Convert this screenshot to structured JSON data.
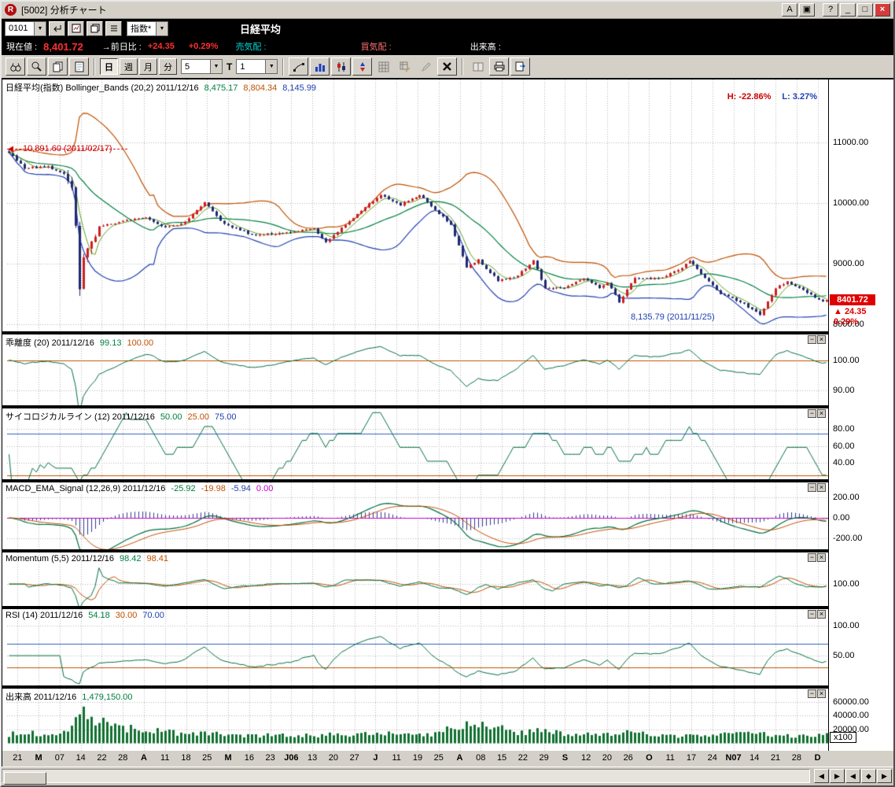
{
  "window": {
    "title": "[5002]  分析チャート",
    "logo_letter": "R",
    "buttons": {
      "font": "A",
      "layout": "▣",
      "help": "?",
      "minimize": "_",
      "maximize": "□",
      "close": "×"
    }
  },
  "symbol_bar": {
    "code": "0101",
    "category": "指数*",
    "name": "日経平均",
    "dropdown_arrow": "▼"
  },
  "quote_bar": {
    "price_label": "現在値 :",
    "price": "8,401.72",
    "change_label": "→前日比 :",
    "change": "+24.35",
    "change_pct": "+0.29%",
    "ask_label": "売気配 :",
    "bid_label": "買気配 :",
    "volume_label": "出来高 :"
  },
  "toolbar": {
    "periods": [
      "日",
      "週",
      "月",
      "分"
    ],
    "active_period": "日",
    "minute_value": "5",
    "tick_label": "T",
    "tick_value": "1"
  },
  "scrollbar": {
    "buttons": [
      "◀",
      "▶",
      "◀",
      "◆",
      "▶"
    ]
  },
  "chart_data": {
    "type": "candlestick-multi-panel",
    "symbol": "日経平均(指数)",
    "date_span": "2011/02/17 - 2011/12/16",
    "n_points": 210,
    "volume_unit": "x100",
    "x_labels": [
      "21",
      "M",
      "07",
      "14",
      "22",
      "28",
      "A",
      "11",
      "18",
      "25",
      "M",
      "16",
      "23",
      "J06",
      "13",
      "20",
      "27",
      "J",
      "11",
      "19",
      "25",
      "A",
      "08",
      "15",
      "22",
      "29",
      "S",
      "12",
      "20",
      "26",
      "O",
      "11",
      "17",
      "24",
      "N07",
      "14",
      "21",
      "28",
      "D"
    ],
    "price_anchors": [
      [
        0,
        10840
      ],
      [
        4,
        10580
      ],
      [
        10,
        10590
      ],
      [
        14,
        10490
      ],
      [
        16,
        10250
      ],
      [
        17,
        9620
      ],
      [
        18,
        8605
      ],
      [
        19,
        9095
      ],
      [
        23,
        9610
      ],
      [
        30,
        9710
      ],
      [
        35,
        9770
      ],
      [
        40,
        9590
      ],
      [
        45,
        9685
      ],
      [
        50,
        10000
      ],
      [
        55,
        9650
      ],
      [
        62,
        9480
      ],
      [
        70,
        9500
      ],
      [
        78,
        9570
      ],
      [
        81,
        9360
      ],
      [
        90,
        9870
      ],
      [
        95,
        10140
      ],
      [
        100,
        9970
      ],
      [
        105,
        10130
      ],
      [
        110,
        9830
      ],
      [
        113,
        9640
      ],
      [
        117,
        8945
      ],
      [
        120,
        9060
      ],
      [
        125,
        8720
      ],
      [
        130,
        8800
      ],
      [
        134,
        9060
      ],
      [
        137,
        8590
      ],
      [
        142,
        8610
      ],
      [
        147,
        8740
      ],
      [
        151,
        8610
      ],
      [
        153,
        8700
      ],
      [
        156,
        8360
      ],
      [
        160,
        8770
      ],
      [
        166,
        8750
      ],
      [
        172,
        8930
      ],
      [
        174,
        9050
      ],
      [
        178,
        8770
      ],
      [
        182,
        8510
      ],
      [
        187,
        8375
      ],
      [
        192,
        8160
      ],
      [
        196,
        8600
      ],
      [
        199,
        8700
      ],
      [
        203,
        8560
      ],
      [
        206,
        8440
      ],
      [
        208,
        8377
      ],
      [
        209,
        8401.72
      ]
    ],
    "volume_anchors": [
      [
        0,
        13000
      ],
      [
        10,
        15000
      ],
      [
        16,
        20000
      ],
      [
        17,
        40000
      ],
      [
        18,
        57000
      ],
      [
        19,
        50000
      ],
      [
        20,
        42000
      ],
      [
        22,
        35000
      ],
      [
        25,
        28000
      ],
      [
        30,
        22000
      ],
      [
        40,
        16000
      ],
      [
        50,
        14000
      ],
      [
        60,
        12000
      ],
      [
        70,
        11000
      ],
      [
        80,
        12000
      ],
      [
        90,
        14000
      ],
      [
        100,
        13000
      ],
      [
        110,
        14000
      ],
      [
        113,
        24000
      ],
      [
        117,
        30000
      ],
      [
        120,
        26000
      ],
      [
        125,
        22000
      ],
      [
        130,
        16000
      ],
      [
        137,
        18000
      ],
      [
        145,
        13000
      ],
      [
        156,
        16000
      ],
      [
        165,
        12000
      ],
      [
        175,
        11000
      ],
      [
        182,
        12000
      ],
      [
        187,
        13000
      ],
      [
        192,
        14000
      ],
      [
        196,
        12000
      ],
      [
        203,
        10000
      ],
      [
        206,
        11000
      ],
      [
        209,
        14791.5
      ]
    ],
    "panels": [
      {
        "id": "main",
        "type": "candlestick",
        "range": [
          12038,
          7884
        ],
        "ticks": [
          {
            "v": 11000,
            "label": "11000.00"
          },
          {
            "v": 10000,
            "label": "10000.00"
          },
          {
            "v": 9000,
            "label": "9000.00"
          },
          {
            "v": 8000,
            "label": "8000.00"
          }
        ],
        "header": [
          {
            "text": "日経平均(指数) Bollinger_Bands (20,2) 2011/12/16",
            "color": "#000000"
          },
          {
            "text": "8,475.17",
            "color": "#008040"
          },
          {
            "text": "8,804.34",
            "color": "#c05000"
          },
          {
            "text": "8,145.99",
            "color": "#2040b0"
          }
        ],
        "colors": {
          "up": "#cc2020",
          "down": "#202a70",
          "mid": "#008040",
          "upper": "#c05000",
          "lower": "#2040b0",
          "fast": "#60a020"
        },
        "annotations": {
          "high": {
            "text": "10,891.60 (2011/02/17)",
            "color": "#cc0000",
            "day": 0,
            "value": 10891.6
          },
          "low": {
            "text": "8,135.79 (2011/11/25)",
            "color": "#2040b0",
            "day": 192,
            "value": 8135.79
          },
          "hl_high": {
            "text": "H: -22.86%",
            "color": "#cc0000"
          },
          "hl_low": {
            "text": "L: 3.27%",
            "color": "#2040b0"
          }
        },
        "price_tag": {
          "value": 8401.72,
          "label": "8401.72",
          "change": "▲ 24.35",
          "pct": "0.29%",
          "bg": "#e00000"
        }
      },
      {
        "id": "dev",
        "type": "line",
        "range": [
          108.5,
          85
        ],
        "ticks": [
          {
            "v": 100,
            "label": "100.00"
          },
          {
            "v": 90,
            "label": "90.00"
          }
        ],
        "header": [
          {
            "text": "乖離度 (20) 2011/12/16",
            "color": "#000000"
          },
          {
            "text": "99.13",
            "color": "#008040"
          },
          {
            "text": "100.00",
            "color": "#c05000"
          }
        ],
        "hlines": [
          {
            "v": 100,
            "color": "#c05000"
          }
        ],
        "line_color": "#007040"
      },
      {
        "id": "psy",
        "type": "line",
        "range": [
          105,
          20
        ],
        "ticks": [
          {
            "v": 80,
            "label": "80.00"
          },
          {
            "v": 60,
            "label": "60.00"
          },
          {
            "v": 40,
            "label": "40.00"
          }
        ],
        "header": [
          {
            "text": "サイコロジカルライン (12) 2011/12/16",
            "color": "#000000"
          },
          {
            "text": "50.00",
            "color": "#008040"
          },
          {
            "text": "25.00",
            "color": "#c05000"
          },
          {
            "text": "75.00",
            "color": "#2040b0"
          }
        ],
        "hlines": [
          {
            "v": 25,
            "color": "#c05000"
          },
          {
            "v": 75,
            "color": "#3060c0"
          }
        ],
        "line_color": "#007040"
      },
      {
        "id": "macd",
        "type": "macd",
        "range": [
          350,
          -310
        ],
        "ticks": [
          {
            "v": 200,
            "label": "200.00"
          },
          {
            "v": 0,
            "label": "0.00"
          },
          {
            "v": -200,
            "label": "-200.00"
          }
        ],
        "header": [
          {
            "text": "MACD_EMA_Signal (12,26,9) 2011/12/16",
            "color": "#000000"
          },
          {
            "text": "-25.92",
            "color": "#008040"
          },
          {
            "text": "-19.98",
            "color": "#c05000"
          },
          {
            "text": "-5.94",
            "color": "#2040b0"
          },
          {
            "text": "0.00",
            "color": "#cc00cc"
          }
        ],
        "hlines": [
          {
            "v": 0,
            "color": "#cc00cc"
          }
        ],
        "colors": {
          "macd": "#007040",
          "signal": "#c05000",
          "hist": "#303a90"
        }
      },
      {
        "id": "mom",
        "type": "line",
        "range": [
          123.6,
          83.6
        ],
        "ticks": [
          {
            "v": 100,
            "label": "100.00"
          }
        ],
        "header": [
          {
            "text": "Momentum (5,5) 2011/12/16",
            "color": "#000000"
          },
          {
            "text": "98.42",
            "color": "#008040"
          },
          {
            "text": "98.41",
            "color": "#c05000"
          }
        ],
        "hlines": [],
        "colors": {
          "mom": "#007040",
          "sig": "#c05000"
        }
      },
      {
        "id": "rsi",
        "type": "line",
        "range": [
          128,
          0
        ],
        "ticks": [
          {
            "v": 100,
            "label": "100.00"
          },
          {
            "v": 50,
            "label": "50.00"
          }
        ],
        "header": [
          {
            "text": "RSI (14) 2011/12/16",
            "color": "#000000"
          },
          {
            "text": "54.18",
            "color": "#008040"
          },
          {
            "text": "30.00",
            "color": "#c05000"
          },
          {
            "text": "70.00",
            "color": "#2040b0"
          }
        ],
        "hlines": [
          {
            "v": 30,
            "color": "#c05000"
          },
          {
            "v": 70,
            "color": "#3060c0"
          }
        ],
        "line_color": "#007040"
      },
      {
        "id": "vol",
        "type": "bars",
        "range": [
          79428,
          -12000
        ],
        "ticks": [
          {
            "v": 60000,
            "label": "60000.00"
          },
          {
            "v": 40000,
            "label": "40000.00"
          },
          {
            "v": 20000,
            "label": "20000.00"
          }
        ],
        "header": [
          {
            "text": "出来高 2011/12/16",
            "color": "#000000"
          },
          {
            "text": "1,479,150.00",
            "color": "#008040"
          }
        ],
        "hlines": [],
        "bar_color": "#107030"
      }
    ]
  }
}
